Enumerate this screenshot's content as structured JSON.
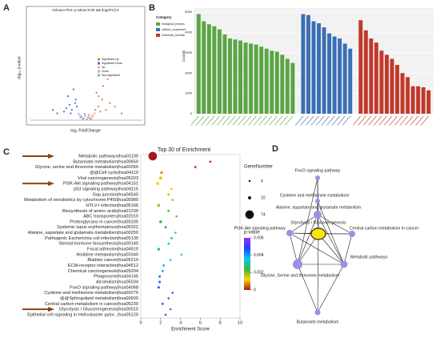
{
  "panels": [
    "A",
    "B",
    "C",
    "D"
  ],
  "chart_data": [
    {
      "type": "scatter",
      "title": "Volcano Plot: p-value<0.05 && |log2FC|>1",
      "xlabel": "log₂ FoldChange",
      "ylabel": "-log₁₀ p-value",
      "xlim": [
        -10,
        10
      ],
      "ylim": [
        0,
        30
      ],
      "legend": "right",
      "series": [
        {
          "name": "Significant Up",
          "color": "#e8743b",
          "x": [
            2.1,
            2.8,
            3.5,
            1.8,
            4.2,
            2.5,
            3.0,
            5.1,
            1.6,
            2.2,
            6.3,
            3.8
          ],
          "y": [
            4,
            6,
            3,
            8,
            5,
            2.5,
            10,
            4,
            3,
            7,
            2,
            12
          ]
        },
        {
          "name": "Significant Down",
          "color": "#4a6fd1",
          "x": [
            -2.0,
            -2.6,
            -3.3,
            -1.7,
            -4.0,
            -2.3,
            -3.0,
            -1.9,
            -2.8,
            -3.6,
            -5.2,
            -6.0
          ],
          "y": [
            5,
            3,
            7,
            4,
            2.5,
            9,
            4.5,
            6,
            2,
            3.5,
            2,
            3
          ]
        },
        {
          "name": "Up",
          "color": "#f2b38f",
          "x": [
            1.2,
            1.5,
            0.9,
            1.1
          ],
          "y": [
            1.5,
            2,
            1.2,
            0.8
          ]
        },
        {
          "name": "Down",
          "color": "#9fb3e8",
          "x": [
            -1.2,
            -1.4,
            -0.9,
            -1.1
          ],
          "y": [
            1.4,
            1.9,
            1.1,
            0.7
          ]
        },
        {
          "name": "Non-significant",
          "color": "#a0a0a0",
          "x": [
            -0.5,
            0.3,
            0.8,
            -0.9,
            0.1,
            -0.2,
            0.6,
            -0.7,
            0.4,
            -0.3
          ],
          "y": [
            0.5,
            0.8,
            0.3,
            1,
            0.2,
            1.2,
            0.6,
            0.4,
            1.5,
            1.8
          ]
        }
      ]
    },
    {
      "type": "bar",
      "ylabel": "Counts",
      "legend_title": "Category",
      "legend": "left",
      "ylim": [
        0,
        5200
      ],
      "yticks": [
        0,
        1000,
        2000,
        3000,
        4000,
        5000
      ],
      "series": [
        {
          "name": "biological_process",
          "color": "#5aa545",
          "values": [
            4900,
            4550,
            4400,
            4300,
            4150,
            3900,
            3700,
            3650,
            3600,
            3500,
            3450,
            3400,
            3300,
            3200,
            3100,
            3050,
            2900,
            2700,
            2500
          ]
        },
        {
          "name": "cellular_component",
          "color": "#3a6fb5",
          "values": [
            4900,
            4850,
            4550,
            4450,
            4250,
            3950,
            3800,
            3700,
            3450,
            3200
          ]
        },
        {
          "name": "molecular_function",
          "color": "#c0392b",
          "values": [
            4600,
            4100,
            3700,
            3500,
            3100,
            2900,
            2700,
            2400,
            2000,
            1800,
            1350,
            1350,
            1300,
            1150
          ]
        }
      ]
    },
    {
      "type": "bubble",
      "title": "Top 30 of  Enrichment",
      "xlabel": "Enrichment Score",
      "xlim": [
        0,
        10
      ],
      "xticks": [
        0,
        2,
        4,
        6,
        8,
        10
      ],
      "categories": [
        "Metabolic pathways|hsa01100",
        "Butanoate metabolism|hsa00650",
        "Glycine, serine and threonine metabolism|hsa00260",
        "@@Cell cycle|hsa04110",
        "Viral carcinogenesis|hsa05203",
        "PI3K-Akt signaling pathway|hsa04151",
        "p53 signaling pathway|hsa04115",
        "Gap junction|hsa04540",
        "Metabolism of xenobiotics by cytochrome P450|hsa00980",
        "HTLV-I infection|hsa05166",
        "Biosynthesis of amino acids|hsa01230",
        "ABC transporters|hsa02010",
        "Proteoglycans in cancer|hsa05205",
        "Systemic lupus erythematosus|hsa05322",
        "Alanine, aspartate and glutamate metabolism|hsa00250",
        "Pathogenic Escherichia coli infection|hsa05130",
        "Steroid hormone biosynthesis|hsa00140",
        "Focal adhesion|hsa04510",
        "Histidine metabolism|hsa00340",
        "Bladder cancer|hsa05219",
        "ECM-receptor interaction|hsa04512",
        "Chemical carcinogenesis|hsa05204",
        "Phagosome|hsa04145",
        "Alcoholism|hsa05034",
        "FoxO signaling pathway|hsa04068",
        "Cysteine and methionine metabolism|hsa00270",
        "@@Sphingolipid metabolism|hsa00600",
        "Central carbon metabolism in cancer|hsa05230",
        "Glycolysis / Gluconeogenesis|hsa00010",
        "Epithelial cell signaling in Helicobacter pylor...|hsa05120"
      ],
      "values": [
        1.2,
        7.0,
        5.5,
        2.1,
        2.0,
        1.7,
        3.1,
        2.8,
        3.2,
        1.8,
        2.8,
        3.6,
        2.0,
        2.5,
        3.5,
        3.1,
        2.8,
        1.8,
        4.1,
        3.0,
        2.3,
        2.2,
        1.9,
        1.9,
        1.8,
        3.2,
        2.8,
        2.2,
        3.0,
        2.5
      ],
      "sizes": [
        74,
        5,
        6,
        8,
        9,
        10,
        5,
        6,
        5,
        9,
        6,
        4,
        8,
        6,
        4,
        5,
        5,
        8,
        4,
        4,
        5,
        5,
        6,
        6,
        6,
        4,
        4,
        5,
        4,
        5
      ],
      "pvalues": [
        0,
        0.0003,
        0.0004,
        0.0008,
        0.001,
        0.0012,
        0.0014,
        0.0015,
        0.0017,
        0.0018,
        0.002,
        0.0022,
        0.0024,
        0.0025,
        0.0027,
        0.0029,
        0.003,
        0.0032,
        0.0034,
        0.0036,
        0.0038,
        0.004,
        0.0042,
        0.0044,
        0.0046,
        0.0048,
        0.005,
        0.0053,
        0.0056,
        0.0059
      ],
      "size_legend_title": "GeneNumber",
      "size_legend": [
        4,
        10,
        74
      ],
      "color_legend_title": "p-value",
      "clim": [
        0,
        0.006
      ],
      "cticks": [
        0,
        0.002,
        0.004,
        0.006
      ],
      "colormap": [
        "#a8151b",
        "#ffd400",
        "#3cb44b",
        "#00d0e0",
        "#2040ff",
        "#9b30ff"
      ]
    }
  ],
  "network": {
    "nodes": [
      {
        "label": "FoxO signaling pathway"
      },
      {
        "label": "Cysteine and methionine metabolism"
      },
      {
        "label": "Alanine, aspartate and glutamate metabolism"
      },
      {
        "label": "PI3K-Akt signaling pathway"
      },
      {
        "label": "Glycolysis / Gluconeogenesis"
      },
      {
        "label": "Central carbon metabolism in cancer"
      },
      {
        "label": "Metabolic pathways"
      },
      {
        "label": "Glycine, Serine and threonine metabolism"
      },
      {
        "label": "Butanoate metabolism"
      }
    ],
    "edges": [
      [
        4,
        0
      ],
      [
        4,
        1
      ],
      [
        4,
        2
      ],
      [
        4,
        3
      ],
      [
        4,
        5
      ],
      [
        4,
        6
      ],
      [
        4,
        7
      ],
      [
        4,
        8
      ],
      [
        0,
        2
      ],
      [
        1,
        2
      ],
      [
        2,
        3
      ],
      [
        2,
        5
      ],
      [
        2,
        6
      ],
      [
        2,
        7
      ],
      [
        3,
        7
      ],
      [
        3,
        6
      ],
      [
        5,
        6
      ],
      [
        6,
        7
      ],
      [
        7,
        8
      ],
      [
        6,
        8
      ],
      [
        0,
        7
      ],
      [
        1,
        6
      ],
      [
        3,
        5
      ]
    ]
  }
}
